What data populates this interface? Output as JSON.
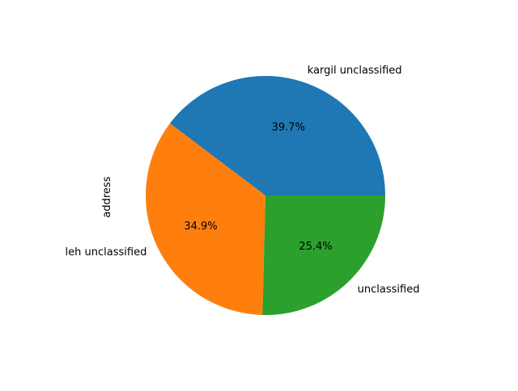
{
  "chart_data": {
    "type": "pie",
    "title": "",
    "ylabel": "address",
    "categories": [
      "kargil unclassified",
      "leh unclassified",
      "unclassified"
    ],
    "values": [
      39.7,
      34.9,
      25.4
    ],
    "value_labels": [
      "39.7%",
      "34.9%",
      "25.4%"
    ],
    "colors": [
      "#1f77b4",
      "#ff7f0e",
      "#2ca02c"
    ],
    "start_angle_deg": 0,
    "direction": "counterclockwise",
    "legend": "none"
  }
}
